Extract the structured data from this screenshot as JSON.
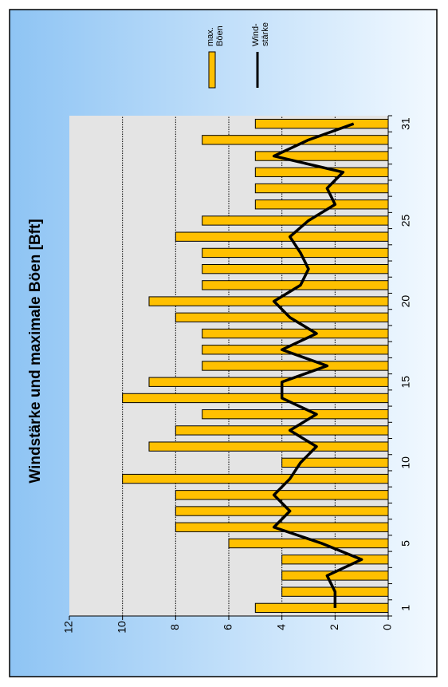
{
  "chart_data": {
    "type": "bar",
    "title": "Windstärke und maximale Böen [Bft]",
    "categories": [
      "1",
      null,
      null,
      null,
      "5",
      null,
      null,
      null,
      null,
      "10",
      null,
      null,
      null,
      null,
      "15",
      null,
      null,
      null,
      null,
      "20",
      null,
      null,
      null,
      null,
      "25",
      null,
      null,
      null,
      null,
      null,
      "31"
    ],
    "series": [
      {
        "name": "max. Böen",
        "type": "bar",
        "color": "#ffc000",
        "values": [
          5,
          4,
          4,
          4,
          6,
          8,
          8,
          8,
          10,
          4,
          9,
          8,
          7,
          10,
          9,
          7,
          7,
          7,
          8,
          9,
          7,
          7,
          7,
          8,
          7,
          5,
          5,
          5,
          5,
          7,
          5
        ]
      },
      {
        "name": "Wind-stärke",
        "type": "line",
        "color": "#000000",
        "values": [
          2,
          2,
          2.3,
          1,
          2.5,
          4.3,
          3.7,
          4.3,
          3.7,
          3.3,
          2.7,
          3.7,
          2.7,
          4,
          4,
          2.3,
          4,
          2.7,
          3.7,
          4.3,
          3.3,
          3,
          3.3,
          3.7,
          3,
          2,
          2.3,
          1.7,
          4.3,
          3,
          1.3
        ]
      }
    ],
    "ylim": [
      0,
      12
    ],
    "yticks": [
      0,
      2,
      4,
      6,
      8,
      10,
      12
    ],
    "grid": true,
    "legend": "top-right"
  }
}
